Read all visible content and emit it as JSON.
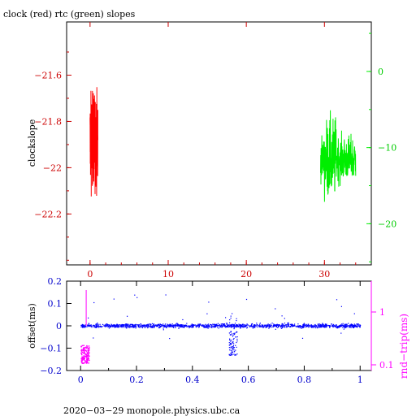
{
  "chart_data": [
    {
      "type": "line",
      "title": "clock (red) rtc (green) slopes",
      "ylabel": "clockslope",
      "xlim": [
        -3,
        36
      ],
      "ylim": [
        -22.42,
        -21.37
      ],
      "x_ticks": [
        0,
        10,
        20,
        30
      ],
      "y_ticks": [
        -21.6,
        -21.8,
        -22,
        -22.2
      ],
      "y_right_ticks": [
        0,
        -10,
        -20
      ],
      "y_right_lim": [
        -25.4,
        6.5
      ],
      "grid": false,
      "colors": {
        "frame": "#000000",
        "left_axis": "#cc0000",
        "right_axis": "#00ee00",
        "x_ticks": "#cc0000"
      },
      "series": [
        {
          "color": "#ff0000",
          "x_range": [
            0,
            1.0
          ],
          "y_range": [
            -22.32,
            -21.46
          ],
          "center": -21.88,
          "axis": "left"
        },
        {
          "color": "#00ee00",
          "x_range": [
            29.5,
            34.0
          ],
          "y_range": [
            -23.2,
            4.6
          ],
          "center": -11.5,
          "axis": "right"
        }
      ]
    },
    {
      "type": "scatter",
      "ylabel": "offset(ms)",
      "ylabel_right": "rnd−trip(ms)",
      "xlim": [
        -0.05,
        1.04
      ],
      "ylim": [
        -0.2,
        0.2
      ],
      "x_ticks": [
        0,
        0.2,
        0.4,
        0.6,
        0.8,
        1
      ],
      "y_ticks": [
        0.2,
        0.1,
        0,
        -0.1,
        -0.2
      ],
      "y_right_ticks": [
        1,
        0.1
      ],
      "y_right_scale": "log",
      "colors": {
        "offset": "#0000ff",
        "round_trip": "#ff00ff",
        "frame": "#000000"
      },
      "series": [
        {
          "name": "",
          "color": "#0000ff",
          "x_range": [
            0,
            1
          ],
          "y_center": 0.002,
          "y_spread": 0.015
        },
        {
          "name": "",
          "color": "#ff00ff",
          "x_range": [
            0,
            0.03
          ],
          "y_range": [
            -0.165,
            -0.085
          ]
        }
      ],
      "features": [
        {
          "x": 0.545,
          "y_min": -0.13,
          "y_max": 0.06
        }
      ]
    }
  ],
  "footer": "2020−03−29  monopole.physics.ubc.ca"
}
